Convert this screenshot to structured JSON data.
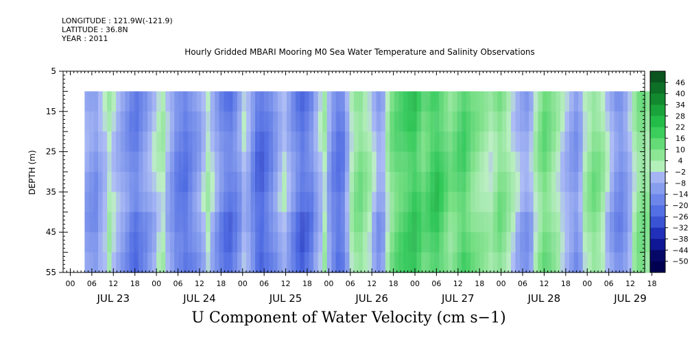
{
  "meta": {
    "longitude": "LONGITUDE : 121.9W(-121.9)",
    "latitude": "LATITUDE : 36.8N",
    "year": "YEAR : 2011"
  },
  "chart_data": {
    "type": "heatmap",
    "title": "Hourly Gridded MBARI Mooring M0 Sea Water Temperature and Salinity Observations",
    "main_label": "U Component of Water Velocity (cm s−1)",
    "ylabel": "DEPTH (m)",
    "ylim": [
      55,
      5
    ],
    "y_ticks": [
      5,
      15,
      25,
      35,
      45,
      55
    ],
    "x_hour_labels": [
      "00",
      "06",
      "12",
      "18",
      "00",
      "06",
      "12",
      "18",
      "00",
      "06",
      "12",
      "18",
      "00",
      "06",
      "12",
      "18",
      "00",
      "06",
      "12",
      "18",
      "00",
      "06",
      "12",
      "18",
      "00",
      "06",
      "12",
      "18"
    ],
    "x_day_labels": [
      "JUL 23",
      "JUL 24",
      "JUL 25",
      "JUL 26",
      "JUL 27",
      "JUL 28",
      "JUL 29"
    ],
    "x_range_hours_from_jul23_00": [
      -2,
      160
    ],
    "data_depth_range": [
      10,
      55
    ],
    "data_time_range_hours": [
      4,
      164
    ],
    "colorbar": {
      "labels": [
        "46",
        "40",
        "34",
        "28",
        "22",
        "16",
        "10",
        "4",
        "−2",
        "−8",
        "−14",
        "−20",
        "−26",
        "−32",
        "−38",
        "−44",
        "−50"
      ]
    },
    "column_values": [
      -10,
      -12,
      -14,
      -8,
      -4,
      2,
      -2,
      -6,
      -10,
      -14,
      -18,
      -20,
      -16,
      -12,
      -8,
      -4,
      0,
      2,
      -6,
      -12,
      -18,
      -20,
      -22,
      -18,
      -14,
      -10,
      -4,
      2,
      -4,
      -10,
      -16,
      -20,
      -22,
      -18,
      -12,
      -4,
      -8,
      -16,
      -24,
      -26,
      -22,
      -18,
      -12,
      -6,
      -2,
      -8,
      -14,
      -20,
      -24,
      -22,
      -18,
      -10,
      -4,
      2,
      -10,
      -18,
      -22,
      -20,
      -8,
      2,
      8,
      10,
      6,
      2,
      -4,
      -10,
      -8,
      2,
      10,
      14,
      16,
      18,
      20,
      22,
      18,
      14,
      16,
      20,
      22,
      18,
      14,
      10,
      12,
      16,
      18,
      14,
      10,
      8,
      6,
      4,
      2,
      6,
      10,
      8,
      4,
      0,
      -4,
      -8,
      -10,
      -6,
      2,
      8,
      12,
      10,
      6,
      2,
      -2,
      -6,
      -10,
      -14,
      -8,
      2,
      6,
      10,
      8,
      4,
      -2,
      -8,
      -14,
      -16,
      -12,
      -6,
      2,
      8,
      10,
      6,
      2,
      -2
    ]
  }
}
